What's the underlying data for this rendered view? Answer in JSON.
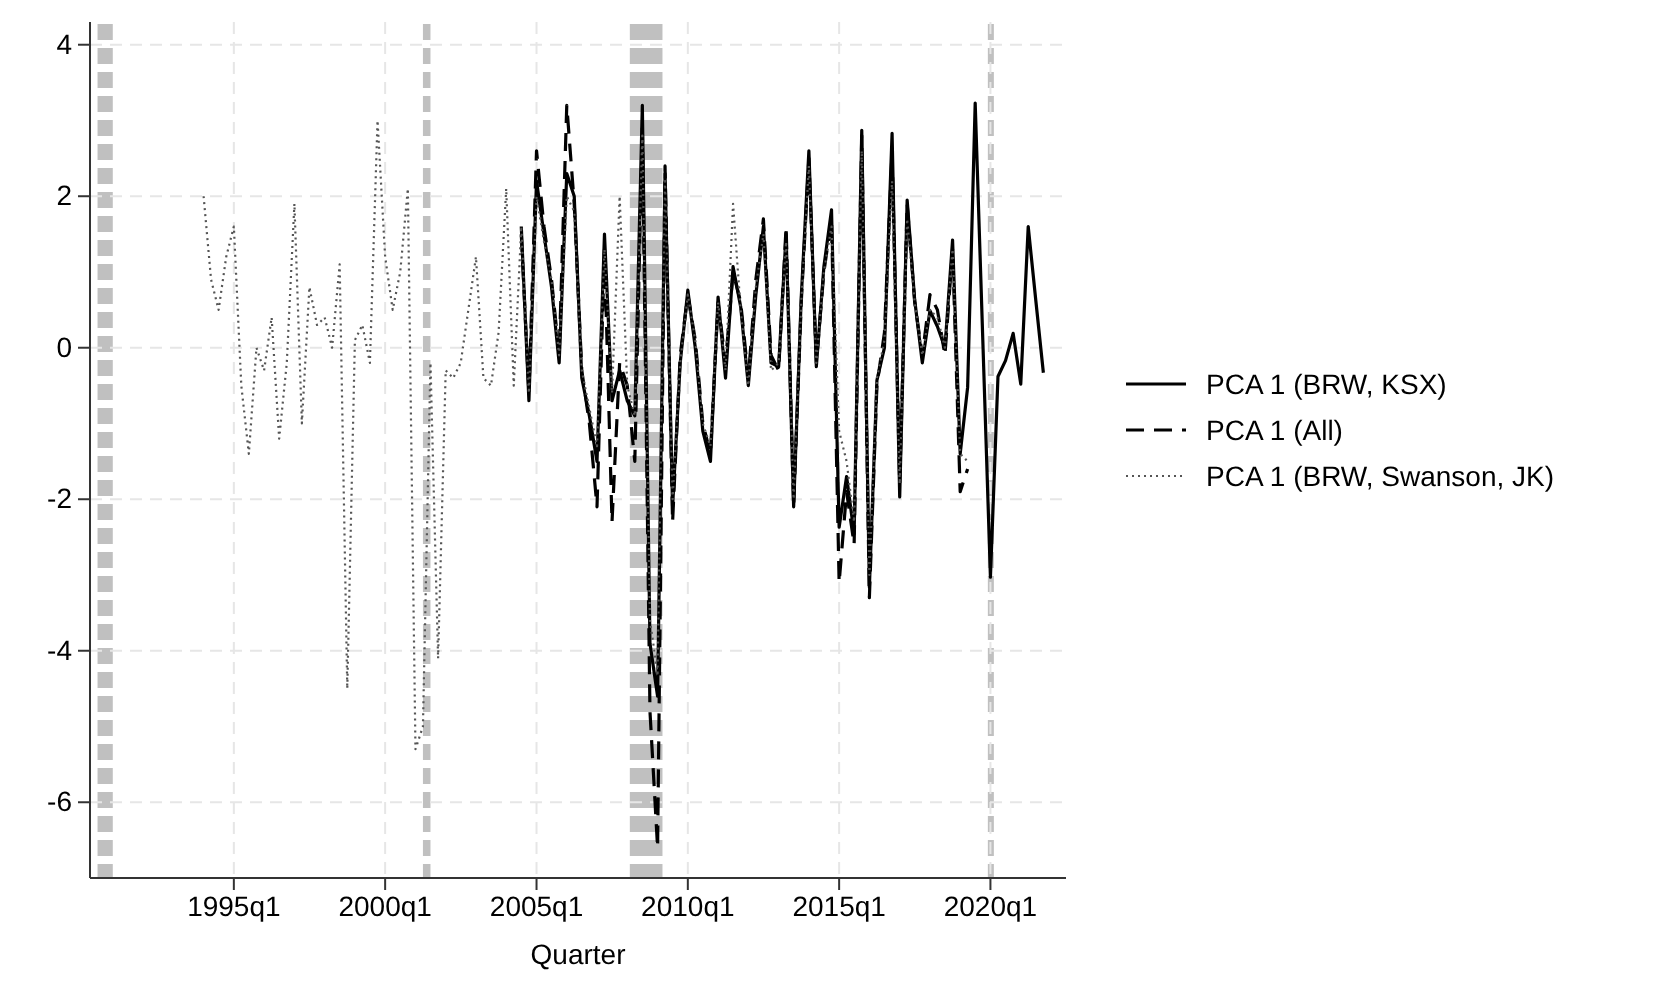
{
  "chart_data": {
    "type": "line",
    "xlabel": "Quarter",
    "x": [
      "2004-07",
      "2004-10",
      "2005-01",
      "2005-04",
      "2005-07",
      "2005-10",
      "2006-01",
      "2006-04",
      "2006-07",
      "2006-10",
      "2007-01",
      "2007-04",
      "2007-07",
      "2007-10",
      "2008-01",
      "2008-04",
      "2008-07",
      "2008-10",
      "2009-01",
      "2009-04",
      "2009-07",
      "2009-10",
      "2010-01",
      "2010-04",
      "2010-07",
      "2010-10",
      "2011-01",
      "2011-04",
      "2011-07",
      "2011-10",
      "2012-01",
      "2012-04",
      "2012-07",
      "2012-10",
      "2013-01",
      "2013-04",
      "2013-07",
      "2013-10",
      "2014-01",
      "2014-04",
      "2014-07",
      "2014-10",
      "2015-01",
      "2015-04",
      "2015-07",
      "2015-10",
      "2016-01",
      "2016-04",
      "2016-07",
      "2016-10",
      "2017-01",
      "2017-04",
      "2017-07",
      "2017-10",
      "2018-01",
      "2018-04",
      "2018-07",
      "2018-10",
      "2019-01",
      "2019-04",
      "2019-07",
      "2019-10",
      "2020-01",
      "2020-04",
      "2020-07",
      "2020-10",
      "2021-01",
      "2021-04",
      "2021-07",
      "2021-10"
    ],
    "series": [
      {
        "name": "PCA 1 (BRW, KSX)",
        "color": "#000000",
        "line_style": "solid",
        "values": [
          1.6,
          -0.7,
          2.2,
          1.5,
          0.8,
          -0.2,
          2.3,
          2.0,
          -0.4,
          -0.9,
          -1.5,
          1.5,
          -0.7,
          -0.3,
          -0.7,
          -0.9,
          3.2,
          -3.9,
          -4.6,
          2.3,
          -2.1,
          -0.2,
          0.76,
          0.0,
          -1.1,
          -1.5,
          0.67,
          -0.4,
          1.07,
          0.54,
          -0.5,
          0.7,
          1.6,
          -0.2,
          -0.25,
          1.5,
          -2.1,
          0.67,
          2.6,
          -0.25,
          1.07,
          1.82,
          -2.37,
          -1.7,
          -2.46,
          2.87,
          -3.16,
          -0.43,
          0.0,
          2.83,
          -1.97,
          1.95,
          0.63,
          -0.2,
          0.49,
          0.28,
          0.0,
          1.42,
          -1.4,
          -0.52,
          3.23,
          0.1,
          -3.03,
          -0.38,
          -0.17,
          0.19,
          -0.48,
          1.6,
          0.63,
          -0.33
        ]
      },
      {
        "name": "PCA 1 (All)",
        "color": "#000000",
        "line_style": "dashed",
        "values": [
          1.5,
          -0.6,
          2.6,
          1.6,
          0.9,
          -0.1,
          3.2,
          1.9,
          -0.3,
          -1.0,
          -2.1,
          1.3,
          -2.3,
          -0.2,
          -0.5,
          -1.5,
          2.9,
          -4.8,
          -6.6,
          2.4,
          -2.3,
          -0.1,
          0.7,
          0.1,
          -1.0,
          -1.4,
          0.6,
          -0.2,
          1.0,
          0.6,
          -0.4,
          0.9,
          1.7,
          -0.1,
          -0.3,
          1.6,
          -2.1,
          0.6,
          2.5,
          -0.2,
          1.0,
          1.7,
          -3.1,
          -1.9,
          -2.6,
          2.8,
          -3.3,
          -0.5,
          0.2,
          2.6,
          -1.8,
          1.9,
          0.6,
          -0.1,
          0.7,
          0.5,
          -0.1,
          1.3,
          -1.9,
          -1.6,
          null,
          null,
          null,
          null,
          null,
          null,
          null,
          null,
          null,
          null
        ]
      },
      {
        "name": "PCA 1 (BRW, Swanson, JK)",
        "color": "#555555",
        "line_style": "dotted",
        "x": [
          "1994-01",
          "1994-04",
          "1994-07",
          "1994-10",
          "1995-01",
          "1995-04",
          "1995-07",
          "1995-10",
          "1996-01",
          "1996-04",
          "1996-07",
          "1996-10",
          "1997-01",
          "1997-04",
          "1997-07",
          "1997-10",
          "1998-01",
          "1998-04",
          "1998-07",
          "1998-10",
          "1999-01",
          "1999-04",
          "1999-07",
          "1999-10",
          "2000-01",
          "2000-04",
          "2000-07",
          "2000-10",
          "2001-01",
          "2001-04",
          "2001-07",
          "2001-10",
          "2002-01",
          "2002-04",
          "2002-07",
          "2002-10",
          "2003-01",
          "2003-04",
          "2003-07",
          "2003-10",
          "2004-01",
          "2004-04",
          "2004-07",
          "2004-10",
          "2005-01",
          "2005-04",
          "2005-07",
          "2005-10",
          "2006-01",
          "2006-04",
          "2006-07",
          "2006-10",
          "2007-01",
          "2007-04",
          "2007-07",
          "2007-10",
          "2008-01",
          "2008-04",
          "2008-07",
          "2008-10",
          "2009-01",
          "2009-04",
          "2009-07",
          "2009-10",
          "2010-01",
          "2010-04",
          "2010-07",
          "2010-10",
          "2011-01",
          "2011-04",
          "2011-07",
          "2011-10",
          "2012-01",
          "2012-04",
          "2012-07",
          "2012-10",
          "2013-01",
          "2013-04",
          "2013-07",
          "2013-10",
          "2014-01",
          "2014-04",
          "2014-07",
          "2014-10",
          "2015-01",
          "2015-04",
          "2015-07",
          "2015-10",
          "2016-01",
          "2016-04",
          "2016-07",
          "2016-10",
          "2017-01",
          "2017-04",
          "2017-07",
          "2017-10",
          "2018-01",
          "2018-04",
          "2018-07",
          "2018-10",
          "2019-01",
          "2019-04"
        ],
        "values": [
          2.0,
          0.9,
          0.5,
          1.2,
          1.6,
          -0.5,
          -1.4,
          0.0,
          -0.3,
          0.4,
          -1.2,
          -0.2,
          1.9,
          -1.0,
          0.8,
          0.3,
          0.4,
          0.0,
          1.1,
          -4.5,
          0.1,
          0.3,
          -0.2,
          3.0,
          1.2,
          0.5,
          1.0,
          2.1,
          -5.3,
          -5.0,
          -0.2,
          -4.1,
          -0.3,
          -0.4,
          -0.2,
          0.5,
          1.2,
          -0.4,
          -0.5,
          0.2,
          2.1,
          -0.5,
          1.6,
          -0.6,
          2.0,
          1.4,
          0.9,
          -0.1,
          2.0,
          1.8,
          -0.3,
          -0.8,
          -1.3,
          1.3,
          -0.6,
          2.0,
          -0.5,
          -0.9,
          2.8,
          -3.6,
          -4.3,
          2.2,
          -2.0,
          -0.2,
          0.7,
          0.1,
          -1.0,
          -1.3,
          0.6,
          -0.3,
          1.9,
          0.5,
          -0.5,
          0.8,
          1.5,
          -0.3,
          -0.2,
          1.4,
          -2.0,
          0.6,
          2.4,
          -0.2,
          1.0,
          1.6,
          -1.1,
          -1.5,
          -2.3,
          2.6,
          -3.0,
          -0.4,
          0.1,
          2.2,
          -1.8,
          1.7,
          0.6,
          -0.1,
          0.5,
          0.4,
          0.0,
          1.3,
          -1.4,
          -1.5
        ]
      }
    ],
    "ylim": [
      -7,
      4.3
    ],
    "yticks": [
      -6,
      -4,
      -2,
      0,
      2,
      4
    ],
    "xlim": [
      "1990-04",
      "2022-07"
    ],
    "xticks": [
      {
        "value": "1995-01",
        "label": "1995q1"
      },
      {
        "value": "2000-01",
        "label": "2000q1"
      },
      {
        "value": "2005-01",
        "label": "2005q1"
      },
      {
        "value": "2010-01",
        "label": "2010q1"
      },
      {
        "value": "2015-01",
        "label": "2015q1"
      },
      {
        "value": "2020-01",
        "label": "2020q1"
      }
    ],
    "grid": true,
    "legend": "right",
    "bands": [
      {
        "axis": "x",
        "from": "1990-07",
        "to": "1991-01",
        "color": "#c0c0c0"
      },
      {
        "axis": "x",
        "from": "2001-04",
        "to": "2001-07",
        "color": "#c0c0c0"
      },
      {
        "axis": "x",
        "from": "2008-02",
        "to": "2009-03",
        "color": "#c0c0c0"
      },
      {
        "axis": "x",
        "from": "2019-12",
        "to": "2020-02",
        "color": "#c0c0c0"
      }
    ]
  }
}
